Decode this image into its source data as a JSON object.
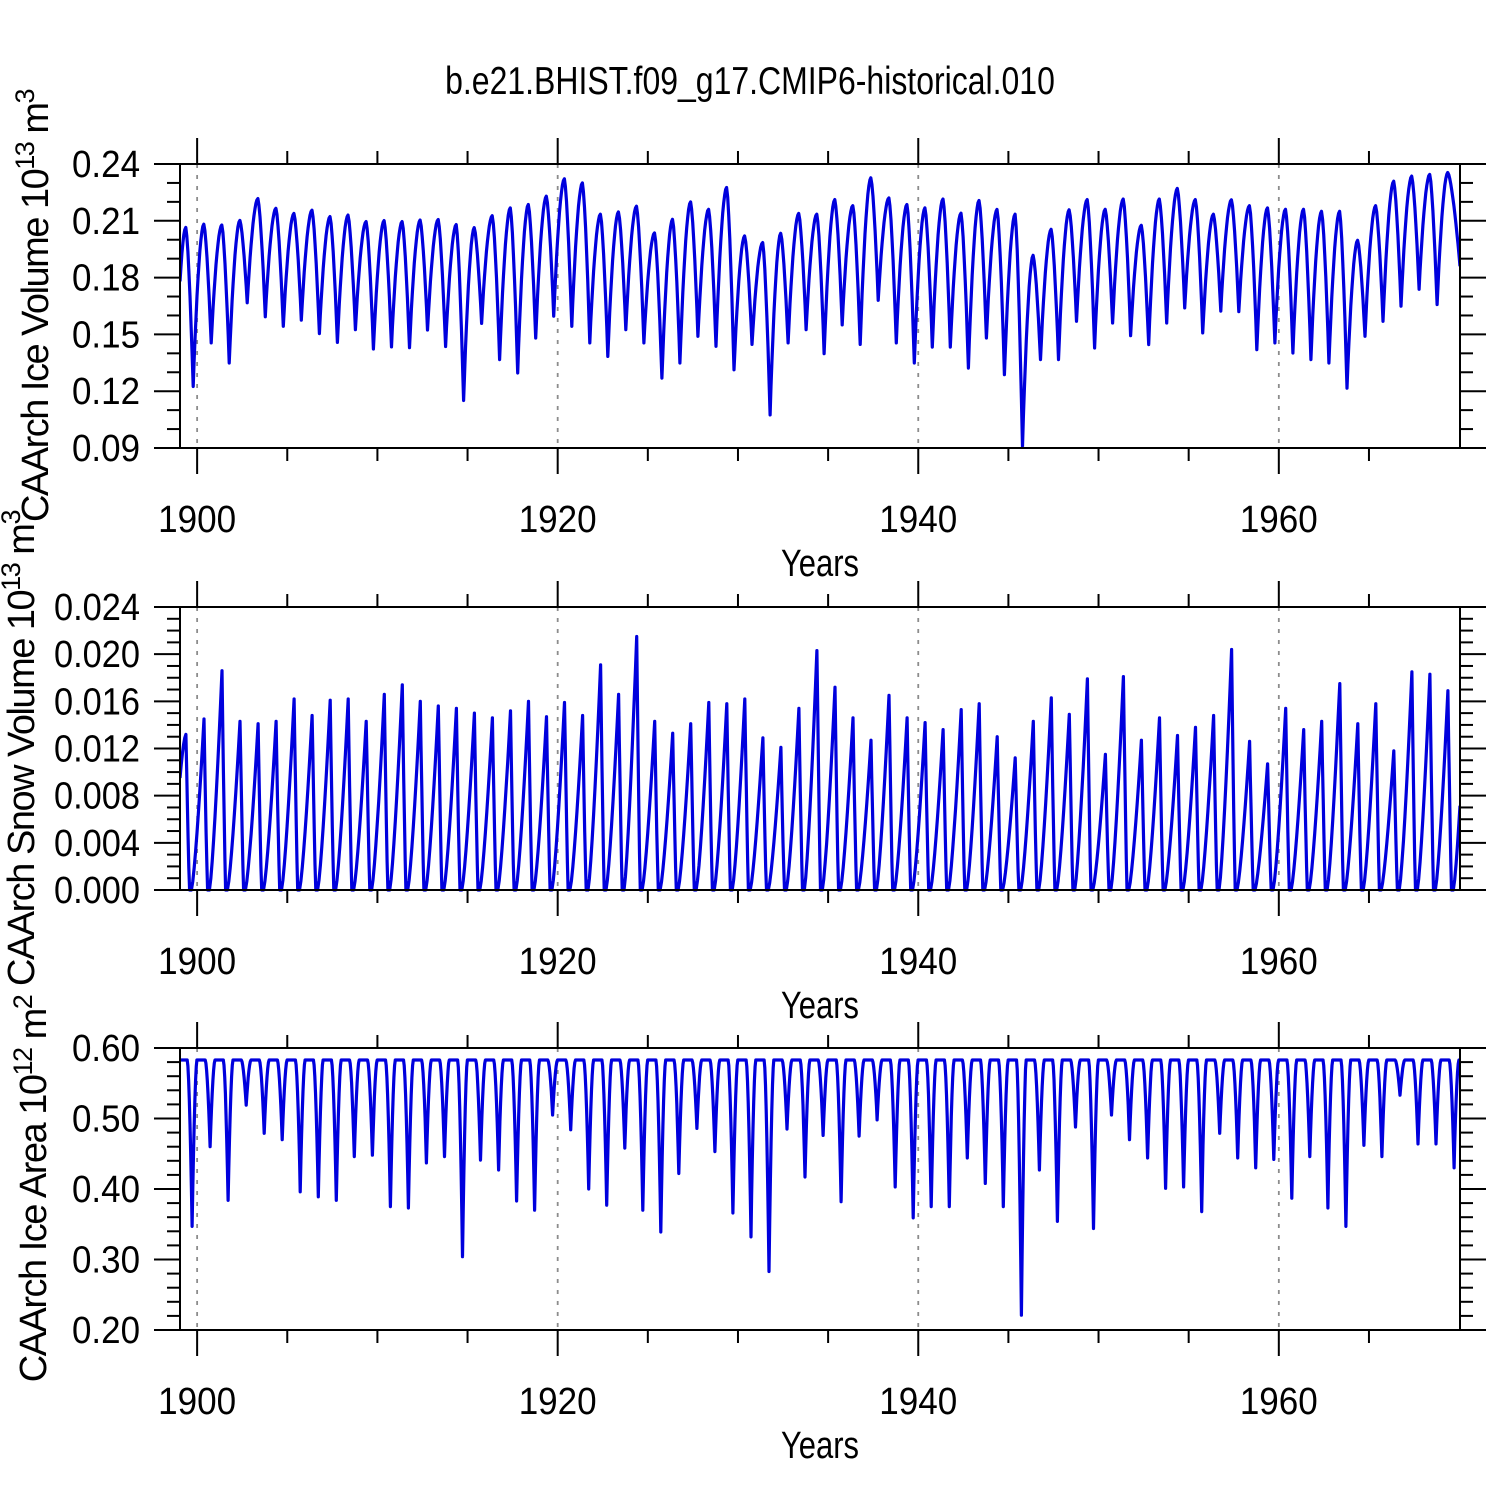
{
  "title": "b.e21.BHIST.f09_g17.CMIP6-historical.010",
  "colors": {
    "line": "#0000dd",
    "frame": "#000000",
    "grid": "#8c8c8c",
    "background": "#ffffff"
  },
  "chart_data": [
    {
      "type": "line",
      "name": "ice-volume",
      "ylabel_segments": [
        {
          "text": "CAArch Ice Volume 10",
          "sup": false
        },
        {
          "text": "13",
          "sup": true
        },
        {
          "text": " m",
          "sup": false
        },
        {
          "text": "3",
          "sup": true
        }
      ],
      "xlabel": "Years",
      "line_color": "#0000dd",
      "xlim": [
        1899.05,
        1970.05
      ],
      "ylim": [
        0.09,
        0.24
      ],
      "yticks": {
        "values": [
          0.24,
          0.21,
          0.18,
          0.15,
          0.12,
          0.09
        ],
        "labels": [
          "0.24",
          "0.21",
          "0.18",
          "0.15",
          "0.12",
          "0.09"
        ]
      },
      "yminor_step": 0.01,
      "xticks": {
        "values": [
          1900,
          1920,
          1940,
          1960
        ],
        "labels": [
          "1900",
          "1920",
          "1940",
          "1960"
        ]
      },
      "xminor_step": 5,
      "grid_on": true,
      "legend": null,
      "series": {
        "start_year": 1899,
        "peak_phase": 0.37,
        "trough_phase": 0.78,
        "start_value": 0.178,
        "end_value": 0.186,
        "annual_peaks": [
          0.2065,
          0.2082,
          0.2078,
          0.2102,
          0.2217,
          0.2166,
          0.2139,
          0.2156,
          0.2122,
          0.213,
          0.2096,
          0.2101,
          0.2096,
          0.2104,
          0.2107,
          0.208,
          0.2064,
          0.2127,
          0.2168,
          0.2186,
          0.223,
          0.2322,
          0.23,
          0.2135,
          0.2147,
          0.2177,
          0.2036,
          0.2108,
          0.22,
          0.2161,
          0.2276,
          0.202,
          0.1985,
          0.2034,
          0.2139,
          0.2135,
          0.2212,
          0.218,
          0.2327,
          0.2221,
          0.2186,
          0.2168,
          0.2215,
          0.214,
          0.2207,
          0.216,
          0.2135,
          0.1918,
          0.2055,
          0.2158,
          0.2212,
          0.2161,
          0.2215,
          0.2076,
          0.2215,
          0.2271,
          0.2212,
          0.2135,
          0.2211,
          0.218,
          0.2168,
          0.2161,
          0.2161,
          0.215,
          0.215,
          0.1997,
          0.218,
          0.2309,
          0.2336,
          0.2345,
          0.2355
        ],
        "annual_troughs": [
          0.1225,
          0.1455,
          0.1349,
          0.1667,
          0.1593,
          0.1543,
          0.1575,
          0.1504,
          0.1458,
          0.1525,
          0.1423,
          0.1434,
          0.143,
          0.1523,
          0.1436,
          0.1151,
          0.1558,
          0.1367,
          0.1296,
          0.1481,
          0.1596,
          0.1543,
          0.1455,
          0.1384,
          0.1525,
          0.1455,
          0.1269,
          0.1349,
          0.149,
          0.1437,
          0.1313,
          0.1447,
          0.1075,
          0.1455,
          0.1525,
          0.1398,
          0.155,
          0.1447,
          0.168,
          0.1455,
          0.1349,
          0.1433,
          0.1433,
          0.1322,
          0.1481,
          0.1287,
          0.0907,
          0.1367,
          0.1367,
          0.1569,
          0.1428,
          0.156,
          0.1493,
          0.1446,
          0.156,
          0.164,
          0.1508,
          0.1623,
          0.162,
          0.1419,
          0.1455,
          0.1402,
          0.1367,
          0.1349,
          0.1216,
          0.149,
          0.1569,
          0.1649,
          0.1738,
          0.1658
        ]
      }
    },
    {
      "type": "line",
      "name": "snow-volume",
      "ylabel_segments": [
        {
          "text": "CAArch Snow Volume 10",
          "sup": false
        },
        {
          "text": "13",
          "sup": true
        },
        {
          "text": " m",
          "sup": false
        },
        {
          "text": "3",
          "sup": true
        }
      ],
      "xlabel": "Years",
      "line_color": "#0000dd",
      "xlim": [
        1899.05,
        1970.05
      ],
      "ylim": [
        0.0,
        0.024
      ],
      "yticks": {
        "values": [
          0.024,
          0.02,
          0.016,
          0.012,
          0.008,
          0.004,
          0.0
        ],
        "labels": [
          "0.024",
          "0.020",
          "0.016",
          "0.012",
          "0.008",
          "0.004",
          "0.000"
        ]
      },
      "yminor_step": 0.001,
      "xticks": {
        "values": [
          1900,
          1920,
          1940,
          1960
        ],
        "labels": [
          "1900",
          "1920",
          "1940",
          "1960"
        ]
      },
      "xminor_step": 5,
      "grid_on": true,
      "legend": null,
      "series": {
        "start_year": 1899,
        "peak_phase": 0.38,
        "melt_end_phase": 0.58,
        "rise_start_phase": 0.68,
        "start_value": 0.0095,
        "annual_peaks": [
          0.0132,
          0.0145,
          0.0186,
          0.0143,
          0.0141,
          0.0143,
          0.0162,
          0.0148,
          0.0161,
          0.0162,
          0.0143,
          0.0166,
          0.0174,
          0.016,
          0.0156,
          0.0154,
          0.015,
          0.0146,
          0.0152,
          0.016,
          0.0147,
          0.0159,
          0.0148,
          0.0191,
          0.0166,
          0.0215,
          0.0143,
          0.0133,
          0.0141,
          0.0159,
          0.0158,
          0.0162,
          0.0129,
          0.0121,
          0.0154,
          0.0203,
          0.0172,
          0.0146,
          0.0127,
          0.0165,
          0.0146,
          0.0142,
          0.0136,
          0.0153,
          0.0158,
          0.013,
          0.0112,
          0.0143,
          0.0163,
          0.0149,
          0.0179,
          0.0115,
          0.0181,
          0.0127,
          0.0146,
          0.0131,
          0.0138,
          0.0148,
          0.0204,
          0.0126,
          0.0107,
          0.0154,
          0.0136,
          0.0143,
          0.0175,
          0.0141,
          0.0158,
          0.0118,
          0.0185,
          0.0183,
          0.0169
        ]
      }
    },
    {
      "type": "line",
      "name": "ice-area",
      "ylabel_segments": [
        {
          "text": "CAArch Ice Area 10",
          "sup": false
        },
        {
          "text": "12",
          "sup": true
        },
        {
          "text": " m",
          "sup": false
        },
        {
          "text": "2",
          "sup": true
        }
      ],
      "xlabel": "Years",
      "line_color": "#0000dd",
      "xlim": [
        1899.05,
        1970.05
      ],
      "ylim": [
        0.2,
        0.6
      ],
      "yticks": {
        "values": [
          0.6,
          0.5,
          0.4,
          0.3,
          0.2
        ],
        "labels": [
          "0.60",
          "0.50",
          "0.40",
          "0.30",
          "0.20"
        ]
      },
      "yminor_step": 0.02,
      "xticks": {
        "values": [
          1900,
          1920,
          1940,
          1960
        ],
        "labels": [
          "1900",
          "1920",
          "1940",
          "1960"
        ]
      },
      "xminor_step": 5,
      "grid_on": true,
      "legend": null,
      "series": {
        "start_year": 1899,
        "flat_value": 0.583,
        "dip_start_phase": 0.45,
        "dip_phase": 0.72,
        "dip_end_phase": 0.99,
        "annual_dip_minima": [
          0.347,
          0.46,
          0.384,
          0.519,
          0.479,
          0.47,
          0.396,
          0.389,
          0.384,
          0.446,
          0.448,
          0.375,
          0.373,
          0.437,
          0.446,
          0.304,
          0.441,
          0.427,
          0.383,
          0.37,
          0.505,
          0.484,
          0.4,
          0.377,
          0.458,
          0.37,
          0.339,
          0.422,
          0.486,
          0.453,
          0.366,
          0.332,
          0.283,
          0.485,
          0.417,
          0.476,
          0.382,
          0.475,
          0.498,
          0.403,
          0.359,
          0.375,
          0.375,
          0.444,
          0.408,
          0.375,
          0.221,
          0.427,
          0.354,
          0.488,
          0.344,
          0.505,
          0.47,
          0.444,
          0.401,
          0.403,
          0.368,
          0.479,
          0.444,
          0.43,
          0.442,
          0.387,
          0.446,
          0.373,
          0.347,
          0.462,
          0.446,
          0.533,
          0.464,
          0.464,
          0.43
        ]
      }
    }
  ]
}
